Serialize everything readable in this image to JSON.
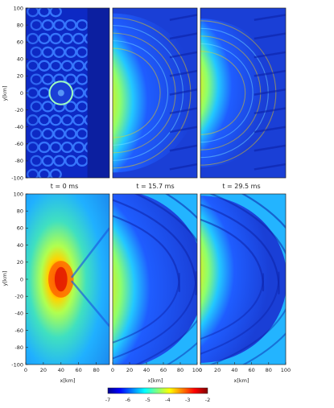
{
  "chart_data": {
    "type": "heatmap",
    "grid": [
      2,
      3
    ],
    "x_axis": {
      "label": "x[km]",
      "ticks_left_col": [
        "0",
        "20",
        "40",
        "60",
        "80"
      ],
      "ticks_other_cols": [
        "0",
        "20",
        "40",
        "60",
        "80",
        "100"
      ],
      "range_left_col": [
        0,
        95
      ],
      "range_other_cols": [
        0,
        100
      ]
    },
    "y_axis": {
      "label": "y[km]",
      "ticks": [
        "100",
        "80",
        "60",
        "40",
        "20",
        "0",
        "-20",
        "-40",
        "-60",
        "-80",
        "-100"
      ],
      "range": [
        -100,
        100
      ]
    },
    "time_labels": [
      "t = 0 ms",
      "t = 15.7 ms",
      "t = 29.5 ms"
    ],
    "colorbar": {
      "ticks": [
        "-7",
        "-6",
        "-5",
        "-4",
        "-3",
        "-2"
      ],
      "range": [
        -7,
        -2
      ],
      "colormap": "jet"
    },
    "colors": {
      "background": "#1a3fd6",
      "deep": "#0c22a8",
      "mid": "#2fa8ff",
      "hot": "#ff3000",
      "core": "#c00000"
    },
    "panels": [
      {
        "row": 0,
        "col": 0,
        "pattern": "wave-cells",
        "ring_radius_km": 10
      },
      {
        "row": 0,
        "col": 1,
        "pattern": "blast-front",
        "front_radius_km": 75
      },
      {
        "row": 0,
        "col": 2,
        "pattern": "blast-front",
        "front_radius_km": 70
      },
      {
        "row": 1,
        "col": 0,
        "pattern": "smooth-core",
        "core_radius_km": 12
      },
      {
        "row": 1,
        "col": 1,
        "pattern": "spiral-front",
        "front_radius_km": 75
      },
      {
        "row": 1,
        "col": 2,
        "pattern": "spiral-front",
        "front_radius_km": 70
      }
    ]
  }
}
